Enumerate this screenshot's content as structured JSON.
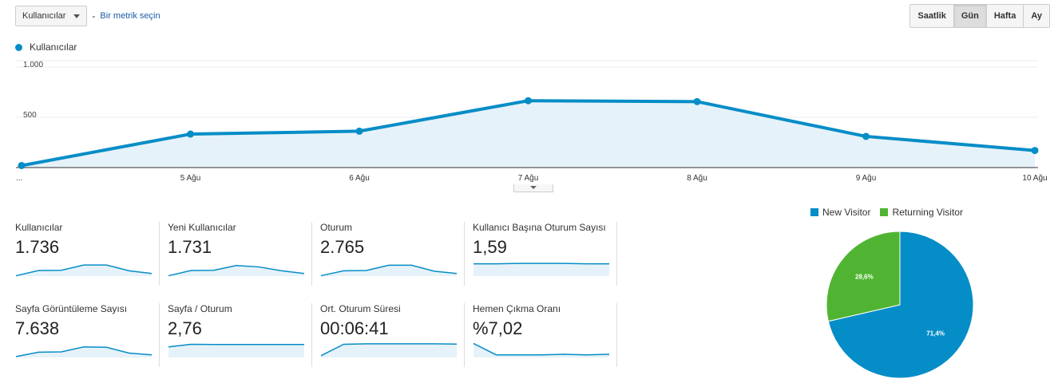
{
  "toolbar": {
    "metric": "Kullanıcılar",
    "separator": "-",
    "add_metric": "Bir metrik seçin"
  },
  "period": {
    "buttons": [
      "Saatlik",
      "Gün",
      "Hafta",
      "Ay"
    ],
    "active": "Gün"
  },
  "chart_data": [
    {
      "type": "area",
      "series": [
        {
          "name": "Kullanıcılar",
          "values": [
            20,
            333,
            362,
            665,
            656,
            310,
            170
          ]
        }
      ],
      "x": [
        "...",
        "5 Ağu",
        "6 Ağu",
        "7 Ağu",
        "8 Ağu",
        "9 Ağu",
        "10 Ağu"
      ],
      "yticks": [
        "1.000",
        "500"
      ],
      "ylim": [
        0,
        1000
      ],
      "color": "#058dc7"
    },
    {
      "type": "pie",
      "labels": [
        "New Visitor",
        "Returning Visitor"
      ],
      "values": [
        71.4,
        28.6
      ],
      "value_labels": [
        "71,4%",
        "28,6%"
      ],
      "colors": [
        "#058dc7",
        "#50b432"
      ],
      "legend": "top"
    }
  ],
  "metrics": [
    {
      "name": "Kullanıcılar",
      "value": "1.736",
      "spark": [
        2,
        32,
        33,
        63,
        63,
        30,
        15
      ]
    },
    {
      "name": "Yeni Kullanıcılar",
      "value": "1.731",
      "spark": [
        2,
        32,
        33,
        60,
        52,
        30,
        15
      ]
    },
    {
      "name": "Oturum",
      "value": "2.765",
      "spark": [
        2,
        30,
        32,
        62,
        62,
        28,
        15
      ]
    },
    {
      "name": "Kullanıcı Başına Oturum Sayısı",
      "value": "1,59",
      "spark": [
        70,
        70,
        72,
        72,
        72,
        70,
        70
      ]
    },
    {
      "name": "Sayfa Görüntüleme Sayısı",
      "value": "7.638",
      "spark": [
        5,
        30,
        32,
        60,
        58,
        25,
        15
      ]
    },
    {
      "name": "Sayfa / Oturum",
      "value": "2,76",
      "spark": [
        60,
        75,
        74,
        74,
        74,
        74,
        74
      ]
    },
    {
      "name": "Ort. Oturum Süresi",
      "value": "00:06:41",
      "spark": [
        10,
        75,
        78,
        78,
        78,
        78,
        76
      ]
    },
    {
      "name": "Hemen Çıkma Oranı",
      "value": "%7,02",
      "spark": [
        80,
        15,
        15,
        15,
        18,
        15,
        18
      ]
    }
  ]
}
